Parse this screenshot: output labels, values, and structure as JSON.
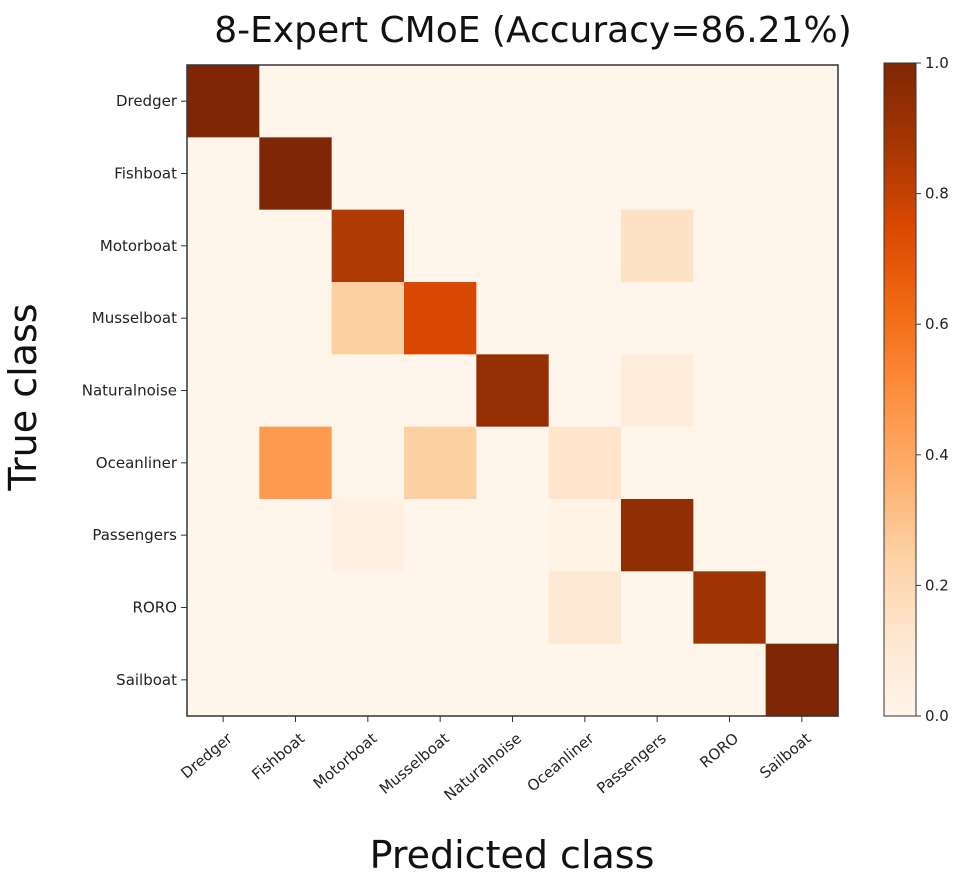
{
  "chart_data": {
    "type": "heatmap",
    "title": "8-Expert CMoE (Accuracy=86.21%)",
    "xlabel": "Predicted class",
    "ylabel": "True class",
    "rows": [
      "Dredger",
      "Fishboat",
      "Motorboat",
      "Musselboat",
      "Naturalnoise",
      "Oceanliner",
      "Passengers",
      "RORO",
      "Sailboat"
    ],
    "cols": [
      "Dredger",
      "Fishboat",
      "Motorboat",
      "Musselboat",
      "Naturalnoise",
      "Oceanliner",
      "Passengers",
      "RORO",
      "Sailboat"
    ],
    "values": [
      [
        1.0,
        0.0,
        0.0,
        0.0,
        0.0,
        0.0,
        0.0,
        0.0,
        0.0
      ],
      [
        0.0,
        1.0,
        0.0,
        0.0,
        0.0,
        0.0,
        0.0,
        0.0,
        0.0
      ],
      [
        0.0,
        0.0,
        0.85,
        0.0,
        0.0,
        0.0,
        0.15,
        0.0,
        0.0
      ],
      [
        0.0,
        0.0,
        0.25,
        0.75,
        0.0,
        0.0,
        0.0,
        0.0,
        0.0
      ],
      [
        0.0,
        0.0,
        0.0,
        0.0,
        0.93,
        0.0,
        0.07,
        0.0,
        0.0
      ],
      [
        0.0,
        0.45,
        0.0,
        0.25,
        0.0,
        0.13,
        0.0,
        0.0,
        0.0
      ],
      [
        0.0,
        0.0,
        0.04,
        0.0,
        0.0,
        0.02,
        0.94,
        0.0,
        0.0
      ],
      [
        0.0,
        0.0,
        0.0,
        0.0,
        0.0,
        0.1,
        0.0,
        0.9,
        0.0
      ],
      [
        0.0,
        0.0,
        0.0,
        0.0,
        0.0,
        0.0,
        0.0,
        0.0,
        1.0
      ]
    ],
    "colormap": "Oranges",
    "color_range": [
      0.0,
      1.0
    ],
    "colorbar_ticks": [
      "0.0",
      "0.2",
      "0.4",
      "0.6",
      "0.8",
      "1.0"
    ]
  }
}
